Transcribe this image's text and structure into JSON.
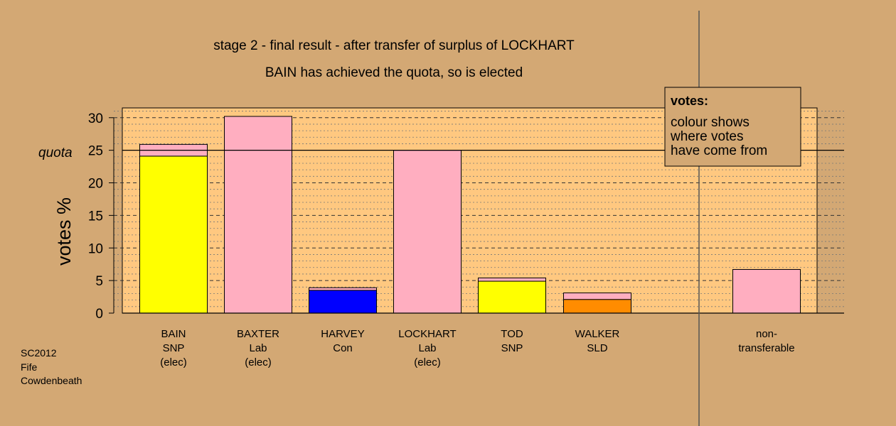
{
  "chart_data": {
    "type": "bar",
    "title": "stage 2 - final result - after transfer of surplus of LOCKHART",
    "subtitle": "BAIN has achieved the quota, so is elected",
    "ylabel": "votes %",
    "ylim": [
      0,
      31.5
    ],
    "yticks": [
      0,
      5,
      10,
      15,
      20,
      25,
      30
    ],
    "quota": 25,
    "quota_label": "quota",
    "categories": [
      {
        "name": "BAIN",
        "party": "SNP",
        "note": "(elec)"
      },
      {
        "name": "BAXTER",
        "party": "Lab",
        "note": "(elec)"
      },
      {
        "name": "HARVEY",
        "party": "Con",
        "note": ""
      },
      {
        "name": "LOCKHART",
        "party": "Lab",
        "note": "(elec)"
      },
      {
        "name": "TOD",
        "party": "SNP",
        "note": ""
      },
      {
        "name": "WALKER",
        "party": "SLD",
        "note": ""
      },
      {
        "name": "non-",
        "party": "transferable",
        "note": ""
      }
    ],
    "bars": [
      {
        "segments": [
          {
            "value": 24.1,
            "color": "#ffff00"
          },
          {
            "value": 1.8,
            "color": "#ffaec0"
          }
        ]
      },
      {
        "segments": [
          {
            "value": 30.2,
            "color": "#ffaec0"
          }
        ]
      },
      {
        "segments": [
          {
            "value": 3.5,
            "color": "#0000ff"
          },
          {
            "value": 0.4,
            "color": "#ffaec0"
          }
        ]
      },
      {
        "segments": [
          {
            "value": 25.0,
            "color": "#ffaec0"
          }
        ]
      },
      {
        "segments": [
          {
            "value": 4.9,
            "color": "#ffff00"
          },
          {
            "value": 0.5,
            "color": "#ffaec0"
          }
        ]
      },
      {
        "segments": [
          {
            "value": 2.1,
            "color": "#ff8c00"
          },
          {
            "value": 1.0,
            "color": "#ffaec0"
          }
        ]
      },
      {
        "segments": [
          {
            "value": 6.7,
            "color": "#ffaec0"
          }
        ]
      }
    ],
    "grid": "dashed",
    "legend": {
      "title": "votes:",
      "lines": [
        "colour shows",
        "where votes",
        "have come from"
      ],
      "placement": "top-right"
    }
  },
  "footer": {
    "lines": [
      "SC2012",
      "Fife",
      "Cowdenbeath"
    ]
  },
  "colors": {
    "background": "#d3a874",
    "plot_background": "#ffc880"
  }
}
